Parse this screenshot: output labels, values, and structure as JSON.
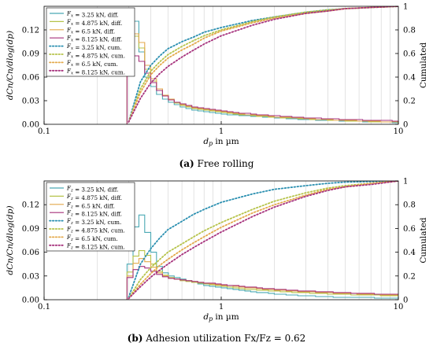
{
  "chart_data": [
    {
      "type": "line",
      "caption_label": "(a)",
      "caption_text": "Free rolling",
      "xlabel": "d_p in µm",
      "ylabel_left": "dC_n/C_n/dlog(d_p)",
      "ylabel_right": "Cumulated",
      "x_scale": "log",
      "xlim": [
        0.1,
        10
      ],
      "ylim_left": [
        0,
        0.15
      ],
      "ylim_right": [
        0,
        1
      ],
      "x_tick_labels": [
        "0.1",
        "1",
        "10"
      ],
      "y_tick_labels_left": [
        "0.00",
        "0.03",
        "0.06",
        "0.09",
        "0.12"
      ],
      "y_tick_labels_right": [
        "0",
        "0.2",
        "0.4",
        "0.6",
        "0.8",
        "1"
      ],
      "legend_position": "top-left",
      "bins": [
        0.294,
        0.318,
        0.343,
        0.37,
        0.4,
        0.431,
        0.466,
        0.503,
        0.543,
        0.586,
        0.632,
        0.683,
        0.737,
        0.796,
        0.859,
        0.927,
        1.0,
        1.08,
        1.166,
        1.259,
        1.359,
        1.467,
        1.584,
        1.71,
        1.846,
        1.993,
        2.152,
        2.323,
        2.508,
        2.707,
        2.923,
        3.156,
        3.407,
        3.678,
        3.971,
        4.287,
        4.628,
        4.997,
        5.394,
        5.824,
        6.287,
        6.788,
        7.328,
        7.911,
        8.541,
        9.221,
        9.955
      ],
      "series": [
        {
          "name": "F_x = 3.25 kN, diff.",
          "kind": "diff",
          "color": "#4aa9b4",
          "values": [
            0.135,
            0.131,
            0.092,
            0.06,
            0.048,
            0.038,
            0.032,
            0.028,
            0.025,
            0.022,
            0.02,
            0.018,
            0.017,
            0.016,
            0.015,
            0.014,
            0.013,
            0.012,
            0.012,
            0.011,
            0.011,
            0.01,
            0.01,
            0.009,
            0.009,
            0.008,
            0.008,
            0.007,
            0.007,
            0.006,
            0.006,
            0.006,
            0.005,
            0.005,
            0.005,
            0.005,
            0.004,
            0.004,
            0.004,
            0.004,
            0.003,
            0.003,
            0.003,
            0.003,
            0.003,
            0.002,
            0.002
          ]
        },
        {
          "name": "F_x = 4.875 kN, diff.",
          "kind": "diff",
          "color": "#b6c34a",
          "values": [
            0.1,
            0.112,
            0.097,
            0.07,
            0.055,
            0.043,
            0.036,
            0.031,
            0.027,
            0.024,
            0.022,
            0.02,
            0.019,
            0.018,
            0.017,
            0.016,
            0.015,
            0.014,
            0.013,
            0.012,
            0.012,
            0.011,
            0.01,
            0.01,
            0.009,
            0.009,
            0.008,
            0.008,
            0.008,
            0.007,
            0.007,
            0.006,
            0.006,
            0.006,
            0.005,
            0.005,
            0.005,
            0.004,
            0.004,
            0.004,
            0.004,
            0.003,
            0.003,
            0.003,
            0.003,
            0.003,
            0.002
          ]
        },
        {
          "name": "F_x = 6.5 kN, diff.",
          "kind": "diff",
          "color": "#e3a94b",
          "values": [
            0.097,
            0.115,
            0.104,
            0.075,
            0.058,
            0.045,
            0.037,
            0.032,
            0.028,
            0.025,
            0.023,
            0.021,
            0.02,
            0.019,
            0.018,
            0.017,
            0.016,
            0.015,
            0.014,
            0.013,
            0.012,
            0.012,
            0.011,
            0.011,
            0.01,
            0.009,
            0.009,
            0.009,
            0.008,
            0.008,
            0.007,
            0.007,
            0.006,
            0.006,
            0.006,
            0.005,
            0.005,
            0.005,
            0.005,
            0.004,
            0.004,
            0.004,
            0.004,
            0.003,
            0.003,
            0.003,
            0.003
          ]
        },
        {
          "name": "F_x = 8.125 kN, diff.",
          "kind": "diff",
          "color": "#a6317c",
          "values": [
            0.082,
            0.087,
            0.08,
            0.065,
            0.053,
            0.043,
            0.036,
            0.031,
            0.028,
            0.026,
            0.024,
            0.022,
            0.021,
            0.02,
            0.019,
            0.018,
            0.017,
            0.016,
            0.015,
            0.014,
            0.014,
            0.013,
            0.012,
            0.012,
            0.011,
            0.011,
            0.01,
            0.01,
            0.009,
            0.009,
            0.008,
            0.008,
            0.008,
            0.007,
            0.007,
            0.007,
            0.006,
            0.006,
            0.006,
            0.006,
            0.005,
            0.005,
            0.005,
            0.005,
            0.005,
            0.004,
            0.004
          ]
        },
        {
          "name": "F_x = 3.25 kN, cum.",
          "kind": "cum",
          "color": "#2a8fb0",
          "x": [
            0.3,
            0.35,
            0.4,
            0.45,
            0.5,
            0.6,
            0.7,
            0.8,
            1.0,
            1.5,
            2,
            3,
            4,
            5,
            7,
            10
          ],
          "values": [
            0.02,
            0.36,
            0.5,
            0.58,
            0.64,
            0.7,
            0.74,
            0.78,
            0.82,
            0.88,
            0.91,
            0.95,
            0.97,
            0.98,
            0.99,
            1.0
          ]
        },
        {
          "name": "F_x = 4.875 kN, cum.",
          "kind": "cum",
          "color": "#b6c34a",
          "x": [
            0.3,
            0.35,
            0.4,
            0.45,
            0.5,
            0.6,
            0.7,
            0.8,
            1.0,
            1.5,
            2,
            3,
            4,
            5,
            7,
            10
          ],
          "values": [
            0.02,
            0.3,
            0.45,
            0.53,
            0.59,
            0.66,
            0.71,
            0.75,
            0.8,
            0.87,
            0.91,
            0.95,
            0.97,
            0.98,
            0.99,
            1.0
          ]
        },
        {
          "name": "F_x = 6.5 kN, cum.",
          "kind": "cum",
          "color": "#e3a94b",
          "x": [
            0.3,
            0.35,
            0.4,
            0.45,
            0.5,
            0.6,
            0.7,
            0.8,
            1.0,
            1.5,
            2,
            3,
            4,
            5,
            7,
            10
          ],
          "values": [
            0.02,
            0.27,
            0.42,
            0.5,
            0.56,
            0.63,
            0.68,
            0.73,
            0.79,
            0.86,
            0.9,
            0.94,
            0.96,
            0.98,
            0.99,
            1.0
          ]
        },
        {
          "name": "F_x = 8.125 kN, cum.",
          "kind": "cum",
          "color": "#a6317c",
          "x": [
            0.3,
            0.35,
            0.4,
            0.45,
            0.5,
            0.6,
            0.7,
            0.8,
            1.0,
            1.5,
            2,
            3,
            4,
            5,
            7,
            10
          ],
          "values": [
            0.02,
            0.22,
            0.35,
            0.43,
            0.49,
            0.57,
            0.63,
            0.68,
            0.75,
            0.84,
            0.89,
            0.94,
            0.96,
            0.98,
            0.99,
            1.0
          ]
        }
      ]
    },
    {
      "type": "line",
      "caption_label": "(b)",
      "caption_text": "Adhesion utilization F_x/F_z = 0.62",
      "xlabel": "d_p in µm",
      "ylabel_left": "dC_n/C_n/dlog(d_p)",
      "ylabel_right": "Cumulated",
      "x_scale": "log",
      "xlim": [
        0.1,
        10
      ],
      "ylim_left": [
        0,
        0.15
      ],
      "ylim_right": [
        0,
        1
      ],
      "x_tick_labels": [
        "0.1",
        "1",
        "10"
      ],
      "y_tick_labels_left": [
        "0.00",
        "0.03",
        "0.06",
        "0.09",
        "0.12"
      ],
      "y_tick_labels_right": [
        "0",
        "0.2",
        "0.4",
        "0.6",
        "0.8",
        "1"
      ],
      "legend_position": "top-left",
      "bins": [
        0.294,
        0.318,
        0.343,
        0.37,
        0.4,
        0.431,
        0.466,
        0.503,
        0.543,
        0.586,
        0.632,
        0.683,
        0.737,
        0.796,
        0.859,
        0.927,
        1.0,
        1.08,
        1.166,
        1.259,
        1.359,
        1.467,
        1.584,
        1.71,
        1.846,
        1.993,
        2.152,
        2.323,
        2.508,
        2.707,
        2.923,
        3.156,
        3.407,
        3.678,
        3.971,
        4.287,
        4.628,
        4.997,
        5.394,
        5.824,
        6.287,
        6.788,
        7.328,
        7.911,
        8.541,
        9.221,
        9.955
      ],
      "series": [
        {
          "name": "F_z = 3.25 kN, diff.",
          "kind": "diff",
          "color": "#4aa9b4",
          "values": [
            0.045,
            0.092,
            0.107,
            0.085,
            0.06,
            0.042,
            0.034,
            0.03,
            0.028,
            0.026,
            0.024,
            0.022,
            0.02,
            0.018,
            0.017,
            0.016,
            0.015,
            0.014,
            0.013,
            0.012,
            0.011,
            0.01,
            0.009,
            0.009,
            0.008,
            0.007,
            0.007,
            0.006,
            0.006,
            0.005,
            0.005,
            0.005,
            0.004,
            0.004,
            0.004,
            0.003,
            0.003,
            0.003,
            0.003,
            0.003,
            0.003,
            0.003,
            0.002,
            0.002,
            0.002,
            0.002,
            0.002
          ]
        },
        {
          "name": "F_z = 4.875 kN, diff.",
          "kind": "diff",
          "color": "#b6c34a",
          "values": [
            0.035,
            0.055,
            0.062,
            0.056,
            0.045,
            0.036,
            0.031,
            0.028,
            0.026,
            0.024,
            0.023,
            0.022,
            0.021,
            0.02,
            0.019,
            0.018,
            0.017,
            0.016,
            0.015,
            0.014,
            0.013,
            0.013,
            0.012,
            0.012,
            0.011,
            0.011,
            0.01,
            0.01,
            0.009,
            0.009,
            0.009,
            0.008,
            0.008,
            0.008,
            0.007,
            0.007,
            0.007,
            0.007,
            0.006,
            0.006,
            0.006,
            0.006,
            0.006,
            0.005,
            0.005,
            0.005,
            0.005
          ]
        },
        {
          "name": "F_z = 6.5 kN, diff.",
          "kind": "diff",
          "color": "#e3a94b",
          "values": [
            0.03,
            0.046,
            0.052,
            0.048,
            0.041,
            0.034,
            0.03,
            0.027,
            0.026,
            0.025,
            0.024,
            0.023,
            0.022,
            0.021,
            0.02,
            0.019,
            0.018,
            0.018,
            0.017,
            0.016,
            0.015,
            0.015,
            0.014,
            0.013,
            0.013,
            0.012,
            0.012,
            0.011,
            0.011,
            0.01,
            0.01,
            0.01,
            0.009,
            0.009,
            0.009,
            0.008,
            0.008,
            0.008,
            0.008,
            0.007,
            0.007,
            0.007,
            0.007,
            0.006,
            0.006,
            0.006,
            0.006
          ]
        },
        {
          "name": "F_z = 8.125 kN, diff.",
          "kind": "diff",
          "color": "#a6317c",
          "values": [
            0.028,
            0.038,
            0.042,
            0.04,
            0.036,
            0.032,
            0.029,
            0.027,
            0.026,
            0.025,
            0.024,
            0.023,
            0.022,
            0.021,
            0.021,
            0.02,
            0.019,
            0.018,
            0.018,
            0.017,
            0.016,
            0.016,
            0.015,
            0.014,
            0.014,
            0.013,
            0.013,
            0.012,
            0.012,
            0.011,
            0.011,
            0.011,
            0.01,
            0.01,
            0.01,
            0.009,
            0.009,
            0.009,
            0.008,
            0.008,
            0.008,
            0.008,
            0.007,
            0.007,
            0.007,
            0.007,
            0.007
          ]
        },
        {
          "name": "F_z = 3.25 kN, cum.",
          "kind": "cum",
          "color": "#2a8fb0",
          "x": [
            0.3,
            0.35,
            0.4,
            0.45,
            0.5,
            0.6,
            0.7,
            0.8,
            1.0,
            1.5,
            2,
            3,
            4,
            5,
            7,
            10
          ],
          "values": [
            0.02,
            0.3,
            0.43,
            0.52,
            0.59,
            0.66,
            0.72,
            0.76,
            0.82,
            0.89,
            0.93,
            0.96,
            0.98,
            0.99,
            0.995,
            1.0
          ]
        },
        {
          "name": "F_z = 4.875 kN, cum.",
          "kind": "cum",
          "color": "#b6c34a",
          "x": [
            0.3,
            0.35,
            0.4,
            0.45,
            0.5,
            0.6,
            0.7,
            0.8,
            1.0,
            1.5,
            2,
            3,
            4,
            5,
            7,
            10
          ],
          "values": [
            0.01,
            0.17,
            0.27,
            0.34,
            0.4,
            0.47,
            0.53,
            0.58,
            0.65,
            0.76,
            0.83,
            0.9,
            0.94,
            0.96,
            0.98,
            1.0
          ]
        },
        {
          "name": "F_z = 6.5 kN, cum.",
          "kind": "cum",
          "color": "#e3a94b",
          "x": [
            0.3,
            0.35,
            0.4,
            0.45,
            0.5,
            0.6,
            0.7,
            0.8,
            1.0,
            1.5,
            2,
            3,
            4,
            5,
            7,
            10
          ],
          "values": [
            0.01,
            0.13,
            0.22,
            0.29,
            0.34,
            0.42,
            0.48,
            0.53,
            0.61,
            0.73,
            0.8,
            0.88,
            0.93,
            0.95,
            0.98,
            1.0
          ]
        },
        {
          "name": "F_z = 8.125 kN, cum.",
          "kind": "cum",
          "color": "#a6317c",
          "x": [
            0.3,
            0.35,
            0.4,
            0.45,
            0.5,
            0.6,
            0.7,
            0.8,
            1.0,
            1.5,
            2,
            3,
            4,
            5,
            7,
            10
          ],
          "values": [
            0.01,
            0.11,
            0.19,
            0.25,
            0.3,
            0.38,
            0.44,
            0.49,
            0.57,
            0.7,
            0.78,
            0.87,
            0.92,
            0.95,
            0.97,
            1.0
          ]
        }
      ]
    }
  ]
}
